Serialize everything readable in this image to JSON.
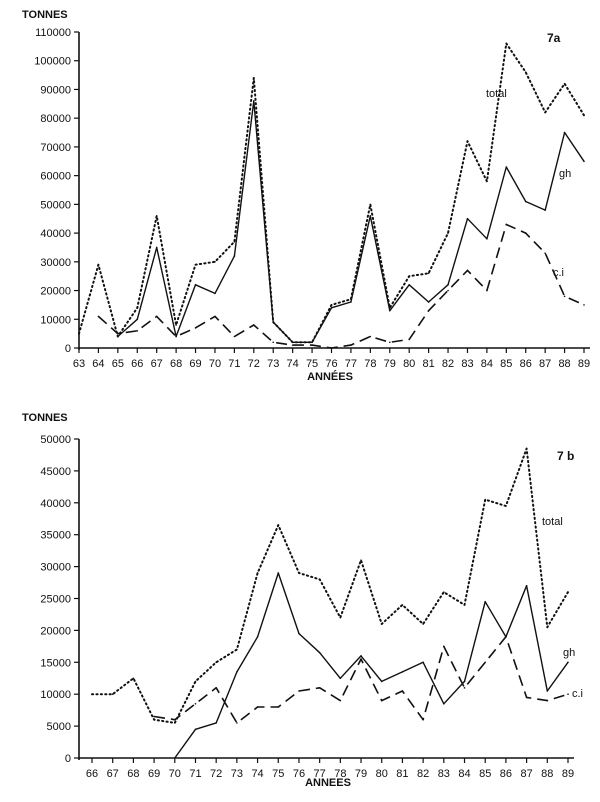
{
  "chart_data": [
    {
      "type": "line",
      "panel_label": "7a",
      "unit_label": "TONNES",
      "xlabel": "ANNÉES",
      "ylim": [
        0,
        110000
      ],
      "yticks": [
        0,
        10000,
        20000,
        30000,
        40000,
        50000,
        60000,
        70000,
        80000,
        90000,
        100000,
        110000
      ],
      "x": [
        "63",
        "64",
        "65",
        "66",
        "67",
        "68",
        "69",
        "70",
        "71",
        "72",
        "73",
        "74",
        "75",
        "76",
        "77",
        "78",
        "79",
        "80",
        "81",
        "82",
        "83",
        "84",
        "85",
        "86",
        "87",
        "88",
        "89"
      ],
      "series": [
        {
          "name": "total",
          "style": "dotted",
          "values": [
            5000,
            29000,
            4000,
            14000,
            46000,
            8000,
            29000,
            30000,
            37000,
            94000,
            9000,
            2000,
            2000,
            15000,
            17000,
            50000,
            14000,
            25000,
            26000,
            40000,
            72000,
            58000,
            106000,
            96000,
            82000,
            92000,
            81000
          ]
        },
        {
          "name": "gh",
          "style": "solid",
          "values": [
            null,
            null,
            4000,
            10000,
            35000,
            4000,
            22000,
            19000,
            32000,
            86000,
            9000,
            2000,
            2000,
            14000,
            16000,
            46000,
            13000,
            22000,
            16000,
            22000,
            45000,
            38000,
            63000,
            51000,
            48000,
            75000,
            65000
          ]
        },
        {
          "name": "c.i",
          "style": "dashed",
          "values": [
            null,
            11000,
            5000,
            6000,
            11000,
            4000,
            7000,
            11000,
            4000,
            8000,
            2000,
            1000,
            1000,
            0,
            1000,
            4000,
            2000,
            3000,
            13000,
            20000,
            27000,
            20000,
            43000,
            40000,
            33000,
            18000,
            15000
          ]
        }
      ]
    },
    {
      "type": "line",
      "panel_label": "7 b",
      "unit_label": "TONNES",
      "xlabel": "ANNEES",
      "ylim": [
        0,
        50000
      ],
      "yticks": [
        0,
        5000,
        10000,
        15000,
        20000,
        25000,
        30000,
        35000,
        40000,
        45000,
        50000
      ],
      "x": [
        "66",
        "67",
        "68",
        "69",
        "70",
        "71",
        "72",
        "73",
        "74",
        "75",
        "76",
        "77",
        "78",
        "79",
        "80",
        "81",
        "82",
        "83",
        "84",
        "85",
        "86",
        "87",
        "88",
        "89"
      ],
      "series": [
        {
          "name": "total",
          "style": "dotted",
          "values": [
            10000,
            10000,
            12500,
            6000,
            5500,
            12000,
            15000,
            17000,
            29000,
            36500,
            29000,
            28000,
            22000,
            31000,
            21000,
            24000,
            21000,
            26000,
            24000,
            40500,
            39500,
            48500,
            20500,
            26000
          ]
        },
        {
          "name": "gh",
          "style": "solid",
          "values": [
            null,
            null,
            null,
            null,
            0,
            4500,
            5500,
            13500,
            19000,
            29000,
            19500,
            16500,
            12500,
            16000,
            12000,
            13500,
            15000,
            8500,
            12000,
            24500,
            19000,
            27000,
            10500,
            15000
          ]
        },
        {
          "name": "c.i",
          "style": "dashed",
          "values": [
            null,
            null,
            null,
            6500,
            6000,
            8500,
            11000,
            5500,
            8000,
            8000,
            10500,
            11000,
            9000,
            15500,
            9000,
            10500,
            6000,
            17500,
            11000,
            15000,
            19000,
            9500,
            9000,
            10000
          ]
        }
      ]
    }
  ]
}
